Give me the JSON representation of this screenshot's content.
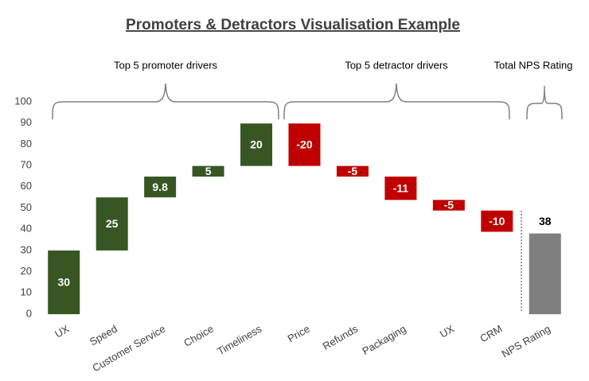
{
  "chart_data": {
    "type": "waterfall",
    "title": "Promoters & Detractors Visualisation Example",
    "annotations": [
      "Top 5 promoter drivers",
      "Top 5 detractor drivers",
      "Total NPS Rating"
    ],
    "categories": [
      "UX",
      "Speed",
      "Customer Service",
      "Choice",
      "Timeliness",
      "Price",
      "Refunds",
      "Packaging",
      "UX",
      "CRM",
      "NPS Rating"
    ],
    "values": [
      30,
      25,
      9.8,
      5,
      20,
      -20,
      -5,
      -11,
      -5,
      -10,
      38
    ],
    "is_total": [
      false,
      false,
      false,
      false,
      false,
      false,
      false,
      false,
      false,
      false,
      true
    ],
    "colors": {
      "increase": "#375623",
      "decrease": "#c00000",
      "total": "#7f7f7f"
    },
    "ylim": [
      0,
      100
    ],
    "yticks": [
      0,
      10,
      20,
      30,
      40,
      50,
      60,
      70,
      80,
      90,
      100
    ],
    "grid": false
  }
}
